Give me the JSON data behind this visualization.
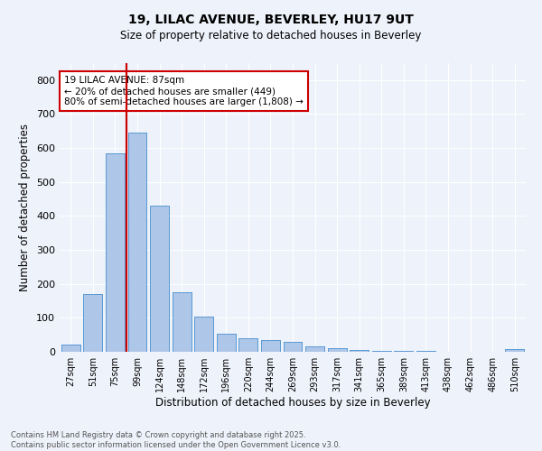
{
  "title1": "19, LILAC AVENUE, BEVERLEY, HU17 9UT",
  "title2": "Size of property relative to detached houses in Beverley",
  "xlabel": "Distribution of detached houses by size in Beverley",
  "ylabel": "Number of detached properties",
  "categories": [
    "27sqm",
    "51sqm",
    "75sqm",
    "99sqm",
    "124sqm",
    "148sqm",
    "172sqm",
    "196sqm",
    "220sqm",
    "244sqm",
    "269sqm",
    "293sqm",
    "317sqm",
    "341sqm",
    "365sqm",
    "389sqm",
    "413sqm",
    "438sqm",
    "462sqm",
    "486sqm",
    "510sqm"
  ],
  "values": [
    20,
    170,
    585,
    645,
    430,
    175,
    103,
    53,
    40,
    35,
    28,
    17,
    10,
    5,
    3,
    2,
    2,
    1,
    1,
    0,
    7
  ],
  "bar_color": "#aec6e8",
  "bar_edge_color": "#5b9bd5",
  "background_color": "#eef2fa",
  "grid_color": "#ffffff",
  "vline_color": "#cc0000",
  "annotation_text": "19 LILAC AVENUE: 87sqm\n← 20% of detached houses are smaller (449)\n80% of semi-detached houses are larger (1,808) →",
  "annotation_box_color": "#ffffff",
  "annotation_box_edge": "#cc0000",
  "footer_text": "Contains HM Land Registry data © Crown copyright and database right 2025.\nContains public sector information licensed under the Open Government Licence v3.0.",
  "ylim": [
    0,
    850
  ],
  "yticks": [
    0,
    100,
    200,
    300,
    400,
    500,
    600,
    700,
    800
  ]
}
